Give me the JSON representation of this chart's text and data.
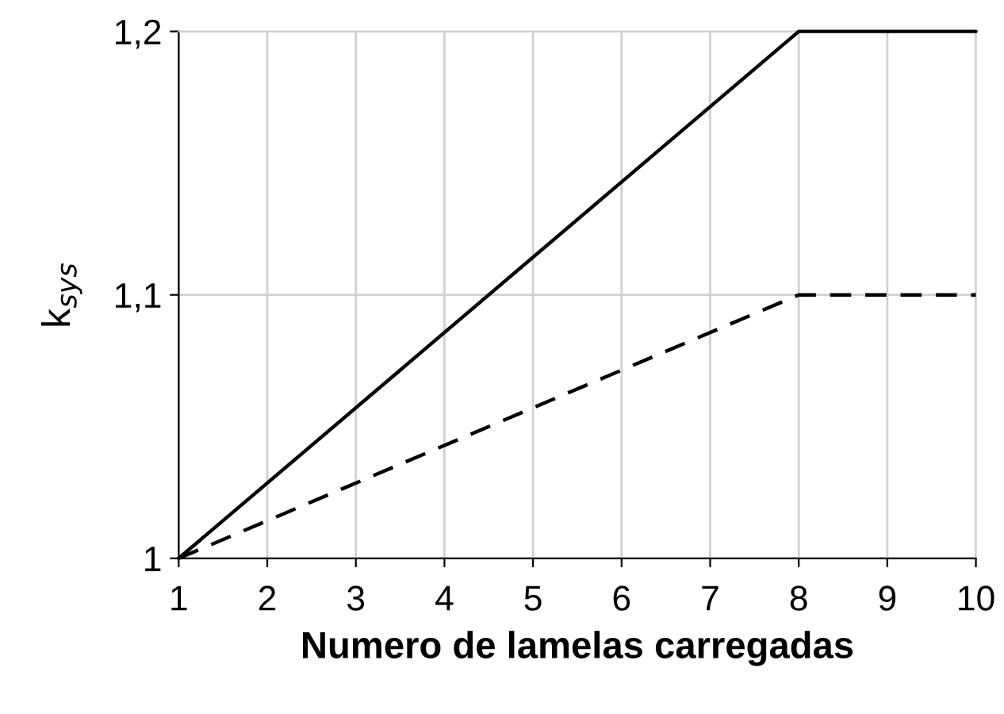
{
  "chart_data": {
    "type": "line",
    "xlabel": "Numero de lamelas carregadas",
    "ylabel": "k$_{sys}$",
    "series": [
      {
        "x": [
          1,
          8,
          10
        ],
        "values": [
          1,
          1.2,
          1.2
        ],
        "color": "#000000",
        "line_style": "solid"
      },
      {
        "x": [
          1,
          8,
          10
        ],
        "values": [
          1,
          1.1,
          1.1
        ],
        "color": "#000000",
        "line_style": "dashed"
      }
    ],
    "xlim": [
      1,
      10
    ],
    "xticks": [
      1,
      2,
      3,
      4,
      5,
      6,
      7,
      8,
      9,
      10
    ],
    "ylim": [
      1,
      1.2
    ],
    "yticks": [
      1,
      {
        "value": 1.1,
        "label": "1,1"
      },
      {
        "value": 1.2,
        "label": "1,2"
      }
    ],
    "grid": true,
    "marker": "none"
  }
}
